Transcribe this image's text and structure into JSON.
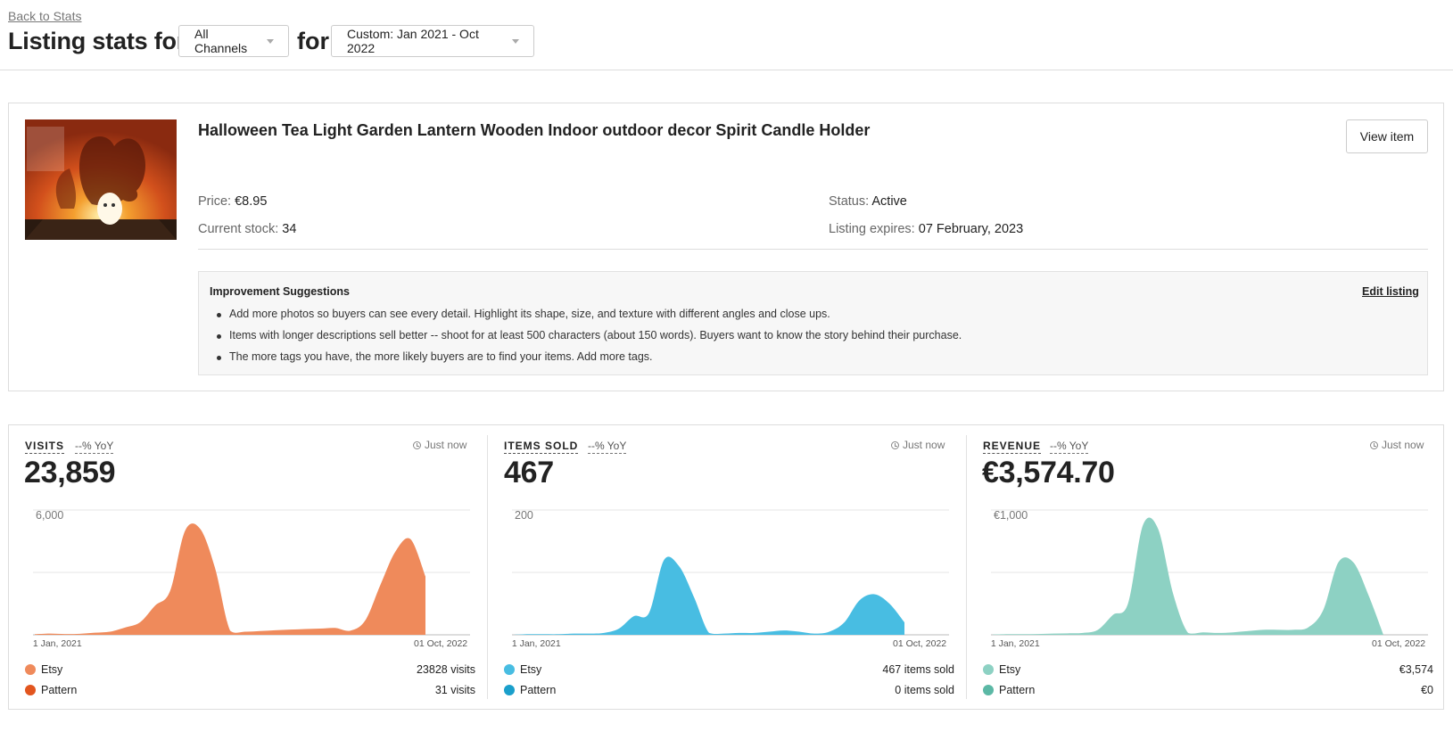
{
  "header": {
    "back_link": "Back to Stats",
    "title": "Listing stats for",
    "channel_select": "All Channels",
    "for_word": "for",
    "date_select": "Custom: Jan 2021 - Oct 2022"
  },
  "listing": {
    "title": "Halloween Tea Light Garden Lantern Wooden Indoor outdoor decor Spirit Candle Holder",
    "view_button": "View item",
    "price_label": "Price:",
    "price_value": "€8.95",
    "stock_label": "Current stock:",
    "stock_value": "34",
    "status_label": "Status:",
    "status_value": "Active",
    "expires_label": "Listing expires:",
    "expires_value": "07 February, 2023",
    "thumbnail": "halloween-ghost-candle-lantern-photo"
  },
  "suggestions": {
    "title": "Improvement Suggestions",
    "edit_link": "Edit listing",
    "items": [
      "Add more photos so buyers can see every detail. Highlight its shape, size, and texture with different angles and close ups.",
      "Items with longer descriptions sell better -- shoot for at least 500 characters (about 150 words). Buyers want to know the story behind their purchase.",
      "The more tags you have, the more likely buyers are to find your items. Add more tags."
    ]
  },
  "stats": [
    {
      "label": "VISITS",
      "yoy": "--% YoY",
      "updated": "Just now",
      "value": "23,859",
      "y_tick": "6,000",
      "x_start": "01 Jan, 2021",
      "x_end": "01 Oct, 2022",
      "color": "#ef8a5b",
      "color2": "#e2551e",
      "legend": [
        {
          "name": "Etsy",
          "value": "23828 visits"
        },
        {
          "name": "Pattern",
          "value": "31 visits"
        }
      ]
    },
    {
      "label": "ITEMS SOLD",
      "yoy": "--% YoY",
      "updated": "Just now",
      "value": "467",
      "y_tick": "200",
      "x_start": "01 Jan, 2021",
      "x_end": "01 Oct, 2022",
      "color": "#48bde2",
      "color2": "#1a9fcb",
      "legend": [
        {
          "name": "Etsy",
          "value": "467 items sold"
        },
        {
          "name": "Pattern",
          "value": "0 items sold"
        }
      ]
    },
    {
      "label": "REVENUE",
      "yoy": "--% YoY",
      "updated": "Just now",
      "value": "€3,574.70",
      "y_tick": "€1,000",
      "x_start": "01 Jan, 2021",
      "x_end": "01 Oct, 2022",
      "color": "#8dd1c3",
      "color2": "#5bb8a5",
      "legend": [
        {
          "name": "Etsy",
          "value": "€3,574"
        },
        {
          "name": "Pattern",
          "value": "€0"
        }
      ]
    }
  ],
  "chart_data": [
    {
      "type": "area",
      "series": [
        {
          "name": "Etsy",
          "values": [
            30,
            60,
            40,
            50,
            100,
            150,
            350,
            600,
            1400,
            2100,
            5000,
            5100,
            3200,
            200,
            150,
            180,
            220,
            250,
            280,
            300,
            330,
            200,
            700,
            2400,
            4000,
            4600,
            2800
          ]
        }
      ],
      "x_start": "01 Jan, 2021",
      "x_end": "01 Oct, 2022",
      "ylim": [
        0,
        6000
      ],
      "y_ticks": [
        "6,000"
      ]
    },
    {
      "type": "area",
      "series": [
        {
          "name": "Etsy",
          "values": [
            0,
            1,
            1,
            1,
            2,
            2,
            3,
            10,
            30,
            35,
            120,
            110,
            60,
            3,
            2,
            3,
            3,
            5,
            7,
            5,
            2,
            5,
            20,
            55,
            65,
            50,
            20
          ]
        }
      ],
      "x_start": "01 Jan, 2021",
      "x_end": "01 Oct, 2022",
      "ylim": [
        0,
        200
      ],
      "y_ticks": [
        "200"
      ]
    },
    {
      "type": "area",
      "series": [
        {
          "name": "Etsy",
          "values": [
            2,
            5,
            5,
            6,
            10,
            12,
            15,
            40,
            160,
            250,
            880,
            850,
            330,
            15,
            20,
            15,
            20,
            30,
            40,
            40,
            40,
            60,
            200,
            580,
            580,
            320,
            0
          ]
        }
      ],
      "x_start": "01 Jan, 2021",
      "x_end": "01 Oct, 2022",
      "ylim": [
        0,
        1000
      ],
      "y_ticks": [
        "€1,000"
      ]
    }
  ]
}
